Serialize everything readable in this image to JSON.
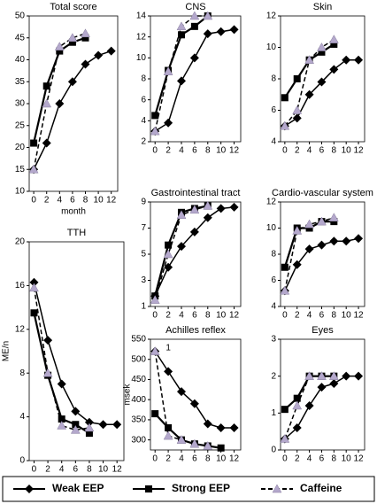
{
  "chart_data": [
    {
      "type": "line",
      "title": "Total score",
      "xlabel": "month",
      "x": [
        0,
        2,
        4,
        6,
        8,
        10,
        12
      ],
      "xlim": [
        -0.7,
        13
      ],
      "xticks": [
        0,
        2,
        4,
        6,
        8,
        10,
        12
      ],
      "ylim": [
        10,
        50
      ],
      "yticks": [
        10,
        15,
        20,
        25,
        30,
        35,
        40,
        45,
        50
      ],
      "series": [
        {
          "name": "Weak EEP",
          "color": "#000000",
          "marker": "diamond",
          "dashed": false,
          "values": [
            15,
            21,
            30,
            35,
            39,
            41,
            42
          ]
        },
        {
          "name": "Strong EEP",
          "color": "#000000",
          "marker": "square",
          "dashed": false,
          "values": [
            21,
            34,
            42,
            44,
            45,
            null,
            null
          ]
        },
        {
          "name": "Caffeine",
          "color": "#b4a8cc",
          "marker": "triangle",
          "dashed": true,
          "values": [
            15,
            30,
            43,
            45,
            46,
            null,
            null
          ]
        }
      ]
    },
    {
      "type": "line",
      "title": "CNS",
      "x": [
        0,
        2,
        4,
        6,
        8,
        10,
        12
      ],
      "xlim": [
        -0.7,
        13
      ],
      "xticks": [
        0,
        2,
        4,
        6,
        8,
        10,
        12
      ],
      "ylim": [
        2,
        14
      ],
      "yticks": [
        2,
        4,
        6,
        8,
        10,
        12,
        14
      ],
      "series": [
        {
          "name": "Weak EEP",
          "color": "#000000",
          "marker": "diamond",
          "dashed": false,
          "values": [
            3,
            3.8,
            7.8,
            10,
            12.3,
            12.5,
            12.7
          ]
        },
        {
          "name": "Strong EEP",
          "color": "#000000",
          "marker": "square",
          "dashed": false,
          "values": [
            4.5,
            8.8,
            12.2,
            13,
            14,
            null,
            null
          ]
        },
        {
          "name": "Caffeine",
          "color": "#b4a8cc",
          "marker": "triangle",
          "dashed": true,
          "values": [
            3,
            8.7,
            13,
            14,
            14,
            null,
            null
          ]
        }
      ]
    },
    {
      "type": "line",
      "title": "Skin",
      "x": [
        0,
        2,
        4,
        6,
        8,
        10,
        12
      ],
      "xlim": [
        -0.7,
        13
      ],
      "xticks": [
        0,
        2,
        4,
        6,
        8,
        10,
        12
      ],
      "ylim": [
        4,
        12
      ],
      "yticks": [
        4,
        6,
        8,
        10,
        12
      ],
      "series": [
        {
          "name": "Weak EEP",
          "color": "#000000",
          "marker": "diamond",
          "dashed": false,
          "values": [
            5,
            5.5,
            7,
            7.8,
            8.6,
            9.2,
            9.2
          ]
        },
        {
          "name": "Strong EEP",
          "color": "#000000",
          "marker": "square",
          "dashed": false,
          "values": [
            6.8,
            8,
            9.2,
            9.7,
            10.2,
            null,
            null
          ]
        },
        {
          "name": "Caffeine",
          "color": "#b4a8cc",
          "marker": "triangle",
          "dashed": true,
          "values": [
            5,
            6,
            9.2,
            10,
            10.5,
            null,
            null
          ]
        }
      ]
    },
    {
      "type": "line",
      "title": "TTH",
      "ylabel": "ME/n",
      "x": [
        0,
        2,
        4,
        6,
        8,
        10,
        12
      ],
      "xlim": [
        -0.7,
        13
      ],
      "xticks": [
        0,
        2,
        4,
        6,
        8,
        10,
        12
      ],
      "ylim": [
        0,
        20
      ],
      "yticks": [
        0,
        4,
        8,
        12,
        16,
        20
      ],
      "series": [
        {
          "name": "Weak EEP",
          "color": "#000000",
          "marker": "diamond",
          "dashed": false,
          "values": [
            16.3,
            11,
            7,
            4.5,
            3.5,
            3.3,
            3.3
          ]
        },
        {
          "name": "Strong EEP",
          "color": "#000000",
          "marker": "square",
          "dashed": false,
          "values": [
            13.5,
            7.8,
            3.8,
            3.3,
            2.5,
            null,
            null
          ]
        },
        {
          "name": "Caffeine",
          "color": "#b4a8cc",
          "marker": "triangle",
          "dashed": true,
          "values": [
            15.8,
            8,
            3.2,
            2.8,
            3,
            null,
            null
          ]
        }
      ]
    },
    {
      "type": "line",
      "title": "Gastrointestinal tract",
      "x": [
        0,
        2,
        4,
        6,
        8,
        10,
        12
      ],
      "xlim": [
        -0.7,
        13
      ],
      "xticks": [
        0,
        2,
        4,
        6,
        8,
        10,
        12
      ],
      "ylim": [
        1,
        9
      ],
      "yticks": [
        1,
        3,
        5,
        7,
        9
      ],
      "series": [
        {
          "name": "Weak EEP",
          "color": "#000000",
          "marker": "diamond",
          "dashed": false,
          "values": [
            1.8,
            4,
            5.6,
            6.7,
            7.8,
            8.5,
            8.6
          ]
        },
        {
          "name": "Strong EEP",
          "color": "#000000",
          "marker": "square",
          "dashed": false,
          "values": [
            1.8,
            5.7,
            8.2,
            8.5,
            8.7,
            null,
            null
          ]
        },
        {
          "name": "Caffeine",
          "color": "#b4a8cc",
          "marker": "triangle",
          "dashed": true,
          "values": [
            1.5,
            5,
            8,
            8.4,
            8.7,
            null,
            null
          ]
        }
      ]
    },
    {
      "type": "line",
      "title": "Cardio-vascular system",
      "x": [
        0,
        2,
        4,
        6,
        8,
        10,
        12
      ],
      "xlim": [
        -0.7,
        13
      ],
      "xticks": [
        0,
        2,
        4,
        6,
        8,
        10,
        12
      ],
      "ylim": [
        4,
        12
      ],
      "yticks": [
        4,
        6,
        8,
        10,
        12
      ],
      "series": [
        {
          "name": "Weak EEP",
          "color": "#000000",
          "marker": "diamond",
          "dashed": false,
          "values": [
            5.2,
            7.2,
            8.4,
            8.7,
            9,
            9,
            9.2
          ]
        },
        {
          "name": "Strong EEP",
          "color": "#000000",
          "marker": "square",
          "dashed": false,
          "values": [
            7,
            10,
            10,
            10.5,
            10.5,
            null,
            null
          ]
        },
        {
          "name": "Caffeine",
          "color": "#b4a8cc",
          "marker": "triangle",
          "dashed": true,
          "values": [
            5.2,
            9.8,
            10.3,
            10.5,
            10.8,
            null,
            null
          ]
        }
      ]
    },
    {
      "type": "line",
      "title": "Achilles reflex",
      "ylabel": "msek",
      "annotation": "1",
      "x": [
        0,
        2,
        4,
        6,
        8,
        10,
        12
      ],
      "xlim": [
        -0.7,
        13
      ],
      "xticks": [
        0,
        2,
        4,
        6,
        8,
        10,
        12
      ],
      "ylim": [
        275,
        550
      ],
      "yticks": [
        300,
        350,
        400,
        450,
        500,
        550
      ],
      "series": [
        {
          "name": "Weak EEP",
          "color": "#000000",
          "marker": "diamond",
          "dashed": false,
          "values": [
            520,
            470,
            420,
            390,
            340,
            330,
            330
          ]
        },
        {
          "name": "Strong EEP",
          "color": "#000000",
          "marker": "square",
          "dashed": false,
          "values": [
            365,
            330,
            300,
            290,
            285,
            280,
            null
          ]
        },
        {
          "name": "Caffeine",
          "color": "#b4a8cc",
          "marker": "triangle",
          "dashed": true,
          "values": [
            520,
            310,
            300,
            290,
            285,
            null,
            null
          ]
        }
      ]
    },
    {
      "type": "line",
      "title": "Eyes",
      "x": [
        0,
        2,
        4,
        6,
        8,
        10,
        12
      ],
      "xlim": [
        -0.7,
        13
      ],
      "xticks": [
        0,
        2,
        4,
        6,
        8,
        10,
        12
      ],
      "ylim": [
        0,
        3
      ],
      "yticks": [
        0,
        1,
        2,
        3
      ],
      "series": [
        {
          "name": "Weak EEP",
          "color": "#000000",
          "marker": "diamond",
          "dashed": false,
          "values": [
            0.3,
            0.6,
            1.2,
            1.7,
            1.8,
            2,
            2
          ]
        },
        {
          "name": "Strong EEP",
          "color": "#000000",
          "marker": "square",
          "dashed": false,
          "values": [
            1.1,
            1.4,
            2,
            2,
            2,
            null,
            null
          ]
        },
        {
          "name": "Caffeine",
          "color": "#b4a8cc",
          "marker": "triangle",
          "dashed": true,
          "values": [
            0.3,
            1.2,
            2,
            2,
            2,
            null,
            null
          ]
        }
      ]
    }
  ]
}
